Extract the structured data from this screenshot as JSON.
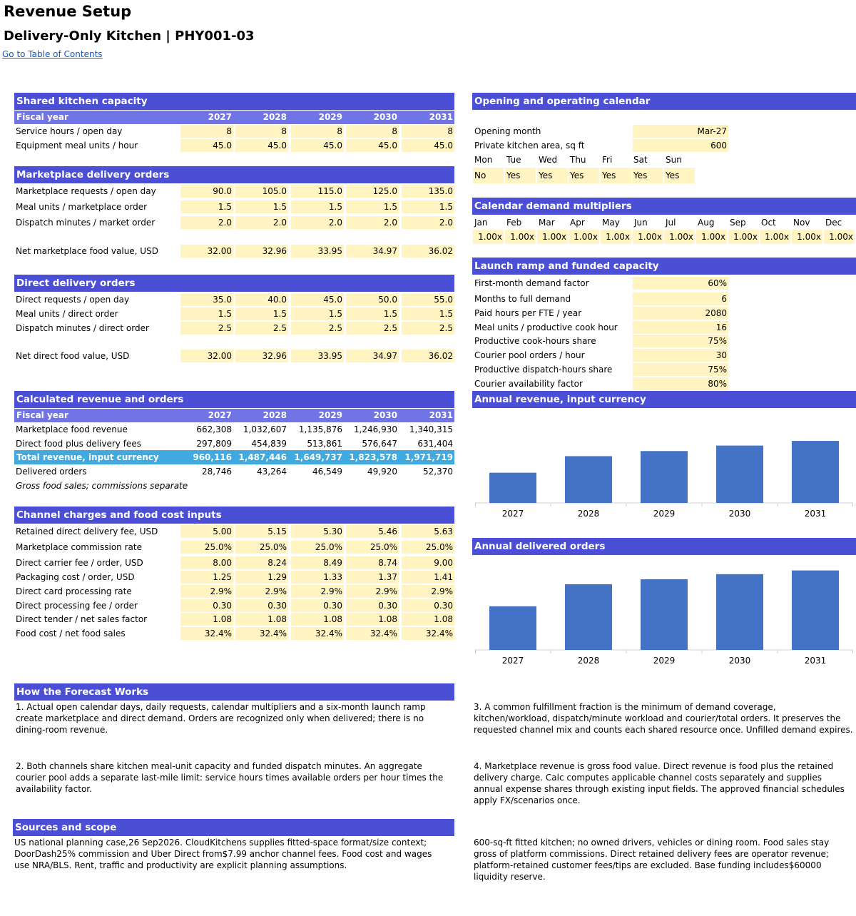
{
  "page": {
    "title": "Revenue Setup",
    "subtitle": "Delivery-Only Kitchen | PHY001-03",
    "toc_link": "Go to Table of Contents"
  },
  "years": [
    "2027",
    "2028",
    "2029",
    "2030",
    "2031"
  ],
  "fiscal_year_label": "Fiscal year",
  "shared_capacity": {
    "header": "Shared kitchen capacity",
    "rows": [
      {
        "label": "Service hours / open day",
        "values": [
          "8",
          "8",
          "8",
          "8",
          "8"
        ]
      },
      {
        "label": "Equipment meal units / hour",
        "values": [
          "45.0",
          "45.0",
          "45.0",
          "45.0",
          "45.0"
        ]
      }
    ]
  },
  "marketplace_orders": {
    "header": "Marketplace delivery orders",
    "rows": [
      {
        "label": "Marketplace requests / open day",
        "values": [
          "90.0",
          "105.0",
          "115.0",
          "125.0",
          "135.0"
        ]
      },
      {
        "label": "Meal units / marketplace order",
        "values": [
          "1.5",
          "1.5",
          "1.5",
          "1.5",
          "1.5"
        ]
      },
      {
        "label": "Dispatch minutes / market order",
        "values": [
          "2.0",
          "2.0",
          "2.0",
          "2.0",
          "2.0"
        ]
      },
      {
        "label": "Net marketplace food value, USD",
        "values": [
          "32.00",
          "32.96",
          "33.95",
          "34.97",
          "36.02"
        ]
      }
    ]
  },
  "direct_orders": {
    "header": "Direct delivery orders",
    "rows": [
      {
        "label": "Direct requests / open day",
        "values": [
          "35.0",
          "40.0",
          "45.0",
          "50.0",
          "55.0"
        ]
      },
      {
        "label": "Meal units / direct order",
        "values": [
          "1.5",
          "1.5",
          "1.5",
          "1.5",
          "1.5"
        ]
      },
      {
        "label": "Dispatch minutes / direct order",
        "values": [
          "2.5",
          "2.5",
          "2.5",
          "2.5",
          "2.5"
        ]
      },
      {
        "label": "Net direct food value, USD",
        "values": [
          "32.00",
          "32.96",
          "33.95",
          "34.97",
          "36.02"
        ]
      }
    ]
  },
  "calculated": {
    "header": "Calculated revenue and orders",
    "rows": [
      {
        "label": "Marketplace food revenue",
        "values": [
          "662,308",
          "1,032,607",
          "1,135,876",
          "1,246,930",
          "1,340,315"
        ]
      },
      {
        "label": "Direct food plus delivery fees",
        "values": [
          "297,809",
          "454,839",
          "513,861",
          "576,647",
          "631,404"
        ]
      }
    ],
    "total": {
      "label": "Total revenue, input currency",
      "values": [
        "960,116",
        "1,487,446",
        "1,649,737",
        "1,823,578",
        "1,971,719"
      ]
    },
    "orders": {
      "label": "Delivered orders",
      "values": [
        "28,746",
        "43,264",
        "46,549",
        "49,920",
        "52,370"
      ]
    },
    "note": "Gross food sales; commissions separate"
  },
  "channel_charges": {
    "header": "Channel charges and food cost inputs",
    "rows": [
      {
        "label": "Retained direct delivery fee, USD",
        "values": [
          "5.00",
          "5.15",
          "5.30",
          "5.46",
          "5.63"
        ]
      },
      {
        "label": "Marketplace commission rate",
        "values": [
          "25.0%",
          "25.0%",
          "25.0%",
          "25.0%",
          "25.0%"
        ]
      },
      {
        "label": "Direct carrier fee / order, USD",
        "values": [
          "8.00",
          "8.24",
          "8.49",
          "8.74",
          "9.00"
        ]
      },
      {
        "label": "Packaging cost / order, USD",
        "values": [
          "1.25",
          "1.29",
          "1.33",
          "1.37",
          "1.41"
        ]
      },
      {
        "label": "Direct card processing rate",
        "values": [
          "2.9%",
          "2.9%",
          "2.9%",
          "2.9%",
          "2.9%"
        ]
      },
      {
        "label": "Direct processing fee / order",
        "values": [
          "0.30",
          "0.30",
          "0.30",
          "0.30",
          "0.30"
        ]
      },
      {
        "label": "Direct tender / net sales factor",
        "values": [
          "1.08",
          "1.08",
          "1.08",
          "1.08",
          "1.08"
        ]
      },
      {
        "label": "Food cost / net food sales",
        "values": [
          "32.4%",
          "32.4%",
          "32.4%",
          "32.4%",
          "32.4%"
        ]
      }
    ]
  },
  "calendar": {
    "header": "Opening and operating calendar",
    "opening_month_label": "Opening month",
    "opening_month": "Mar-27",
    "area_label": "Private kitchen area, sq ft",
    "area": "600",
    "days": [
      "Mon",
      "Tue",
      "Wed",
      "Thu",
      "Fri",
      "Sat",
      "Sun"
    ],
    "open": [
      "No",
      "Yes",
      "Yes",
      "Yes",
      "Yes",
      "Yes",
      "Yes"
    ]
  },
  "multipliers": {
    "header": "Calendar demand multipliers",
    "months": [
      "Jan",
      "Feb",
      "Mar",
      "Apr",
      "May",
      "Jun",
      "Jul",
      "Aug",
      "Sep",
      "Oct",
      "Nov",
      "Dec"
    ],
    "values": [
      "1.00x",
      "1.00x",
      "1.00x",
      "1.00x",
      "1.00x",
      "1.00x",
      "1.00x",
      "1.00x",
      "1.00x",
      "1.00x",
      "1.00x",
      "1.00x"
    ]
  },
  "ramp": {
    "header": "Launch ramp and funded capacity",
    "rows": [
      {
        "label": "First-month demand factor",
        "value": "60%"
      },
      {
        "label": "Months to full demand",
        "value": "6"
      },
      {
        "label": "Paid hours per FTE / year",
        "value": "2080"
      },
      {
        "label": "Meal units / productive cook hour",
        "value": "16"
      },
      {
        "label": "Productive cook-hours share",
        "value": "75%"
      },
      {
        "label": "Courier pool orders / hour",
        "value": "30"
      },
      {
        "label": "Productive dispatch-hours share",
        "value": "75%"
      },
      {
        "label": "Courier availability factor",
        "value": "80%"
      }
    ]
  },
  "chart_revenue": {
    "header": "Annual revenue, input currency"
  },
  "chart_orders": {
    "header": "Annual delivered orders"
  },
  "chart_data": [
    {
      "type": "bar",
      "categories": [
        "2027",
        "2028",
        "2029",
        "2030",
        "2031"
      ],
      "values": [
        960116,
        1487446,
        1649737,
        1823578,
        1971719
      ],
      "title": "Annual revenue, input currency",
      "color": "#4472c4",
      "ylim": [
        0,
        2200000
      ]
    },
    {
      "type": "bar",
      "categories": [
        "2027",
        "2028",
        "2029",
        "2030",
        "2031"
      ],
      "values": [
        28746,
        43264,
        46549,
        49920,
        52370
      ],
      "title": "Annual delivered orders",
      "color": "#4472c4",
      "ylim": [
        0,
        55000
      ]
    }
  ],
  "how_it_works": {
    "header": "How the Forecast Works",
    "p1": "1. Actual open calendar days, daily requests, calendar multipliers and a six-month launch ramp create marketplace and direct demand. Orders are recognized only when delivered; there is no dining-room revenue.",
    "p2": "2. Both channels share kitchen meal-unit capacity and funded dispatch minutes. An aggregate courier pool adds a separate last-mile limit: service hours times available orders per hour times the availability factor.",
    "p3": "3. A common fulfillment fraction is the minimum of demand coverage, kitchen/workload, dispatch/minute workload and courier/total orders. It preserves the requested channel mix and counts each shared resource once. Unfilled demand expires.",
    "p4": "4. Marketplace revenue is gross food value. Direct revenue is food plus the retained delivery charge. Calc computes applicable channel costs separately and supplies annual expense shares through existing input fields. The approved financial schedules apply FX/scenarios once."
  },
  "sources": {
    "header": "Sources and scope",
    "p1": "US national planning case,26 Sep2026. CloudKitchens supplies fitted-space format/size context; DoorDash25% commission and Uber Direct from$7.99 anchor channel fees. Food cost and wages use NRA/BLS. Rent, traffic and productivity are explicit planning assumptions.",
    "p2": "600-sq-ft fitted kitchen; no owned drivers, vehicles or dining room. Food sales stay gross of platform commissions. Direct retained delivery fees are operator revenue; platform-retained customer fees/tips are excluded. Base funding includes$60000 liquidity reserve."
  }
}
